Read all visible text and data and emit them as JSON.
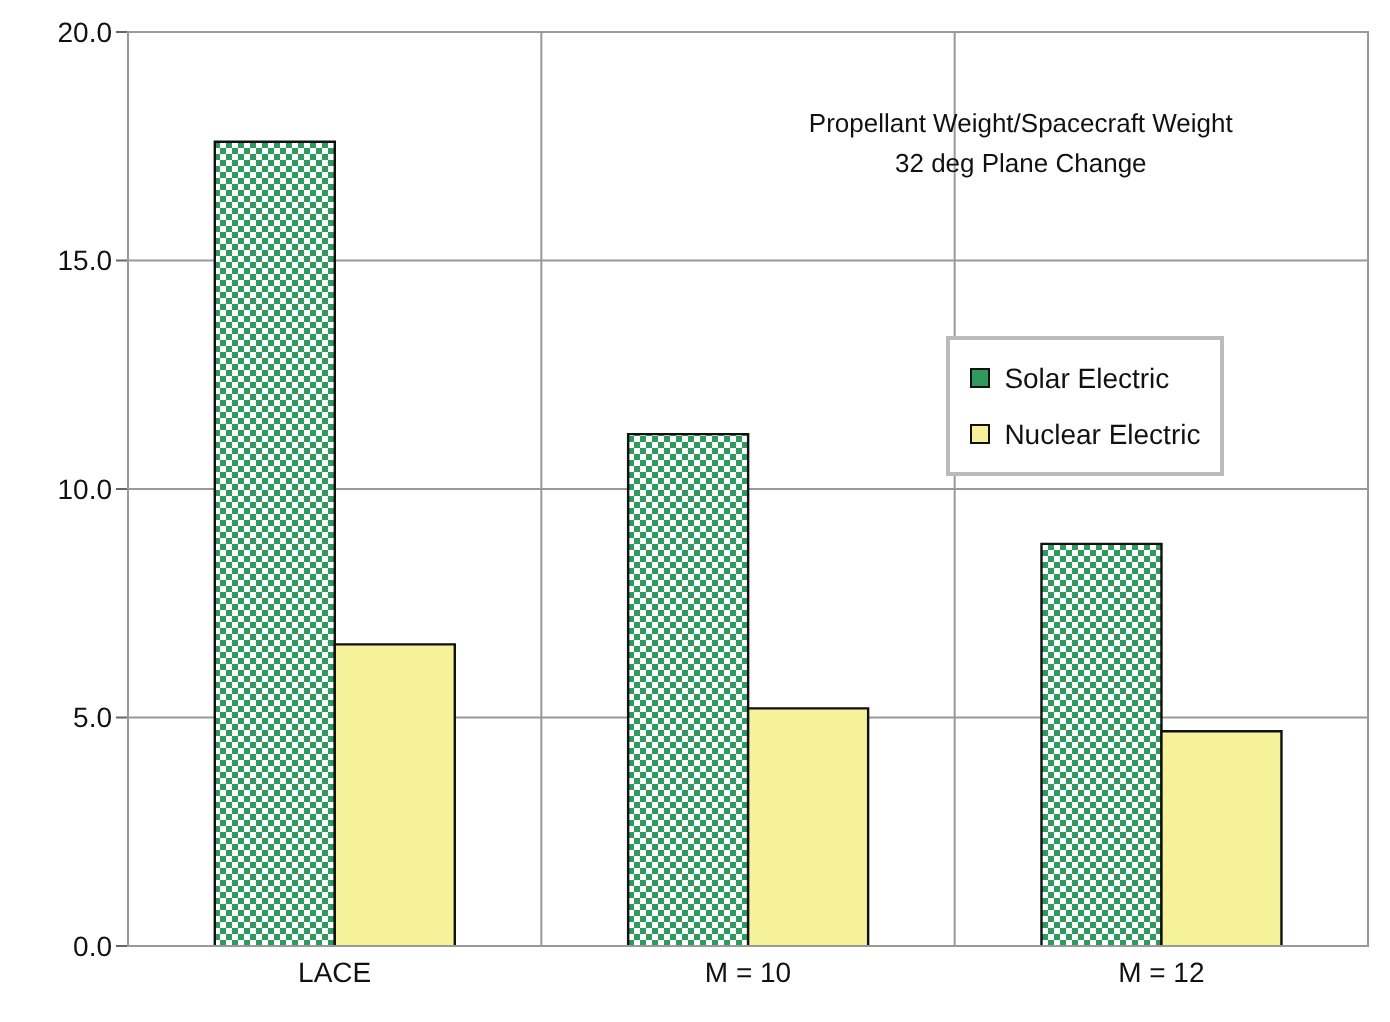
{
  "chart_data": {
    "type": "bar",
    "title": "Propellant Weight/Spacecraft Weight",
    "subtitle": "32 deg Plane Change",
    "categories": [
      "LACE",
      "M = 10",
      "M = 12"
    ],
    "series": [
      {
        "name": "Solar Electric",
        "color": "#2e9a5e",
        "values": [
          17.6,
          11.2,
          8.8
        ]
      },
      {
        "name": "Nuclear Electric",
        "color": "#f5f29a",
        "values": [
          6.6,
          5.2,
          4.7
        ]
      }
    ],
    "ylim": [
      0,
      20
    ],
    "yticks": [
      {
        "value": 0,
        "label": "0.0"
      },
      {
        "value": 5,
        "label": "5.0"
      },
      {
        "value": 10,
        "label": "10.0"
      },
      {
        "value": 15,
        "label": "15.0"
      },
      {
        "value": 20,
        "label": "20.0"
      }
    ],
    "grid": true,
    "legend": "right"
  }
}
